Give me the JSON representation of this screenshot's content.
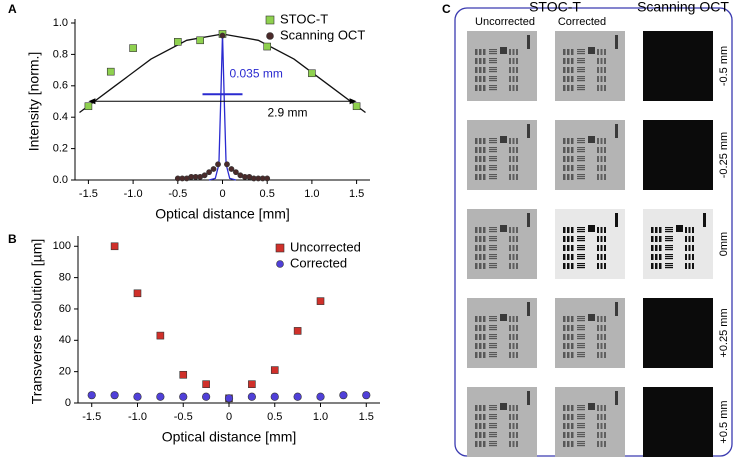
{
  "panel_labels": [
    "A",
    "B",
    "C"
  ],
  "chart_data": [
    {
      "type": "scatter",
      "xlabel": "Optical distance [mm]",
      "ylabel": "Intensity [norm.]",
      "xlim": [
        -1.65,
        1.65
      ],
      "ylim": [
        0,
        1.0
      ],
      "xticks": [
        -1.5,
        {
          "value": -1,
          "label": "-1.0"
        },
        -0.5,
        0,
        0.5,
        {
          "value": 1,
          "label": "1.0"
        },
        1.5
      ],
      "yticks": [
        {
          "value": 0,
          "label": "0.0"
        },
        0.2,
        0.4,
        0.6,
        0.8,
        {
          "value": 1,
          "label": "1.0"
        }
      ],
      "legend": "upper right",
      "annotations": [
        "0.035 mm",
        "2.9 mm"
      ],
      "series": [
        {
          "name": "STOC-T",
          "color": "#8fd14f",
          "marker": "square",
          "x": [
            -1.5,
            -1.25,
            -1.0,
            -0.5,
            -0.25,
            0,
            0.5,
            1.0,
            1.5
          ],
          "values": [
            0.47,
            0.69,
            0.84,
            0.88,
            0.89,
            0.93,
            0.85,
            0.68,
            0.47
          ]
        },
        {
          "name": "Scanning OCT",
          "color": "#4a2a2a",
          "marker": "circle",
          "x": [
            -0.5,
            -0.45,
            -0.4,
            -0.35,
            -0.3,
            -0.25,
            -0.2,
            -0.15,
            -0.1,
            -0.05,
            0,
            0.05,
            0.1,
            0.15,
            0.2,
            0.25,
            0.3,
            0.35,
            0.4,
            0.45,
            0.5
          ],
          "values": [
            0.01,
            0.01,
            0.01,
            0.02,
            0.02,
            0.02,
            0.03,
            0.05,
            0.07,
            0.1,
            0.92,
            0.1,
            0.07,
            0.05,
            0.03,
            0.02,
            0.02,
            0.01,
            0.01,
            0.01,
            0.01
          ]
        },
        {
          "color": "#111111",
          "marker": "line",
          "x": [
            -1.6,
            -1.2,
            -0.8,
            -0.4,
            0,
            0.4,
            0.8,
            1.2,
            1.6
          ],
          "values": [
            0.43,
            0.6,
            0.77,
            0.89,
            0.93,
            0.89,
            0.77,
            0.6,
            0.43
          ]
        },
        {
          "color": "#2a2ad0",
          "marker": "line",
          "x": [
            -0.15,
            -0.08,
            -0.04,
            -0.02,
            0,
            0.02,
            0.04,
            0.08,
            0.15
          ],
          "values": [
            0,
            0.01,
            0.1,
            0.5,
            0.93,
            0.5,
            0.1,
            0.01,
            0
          ]
        }
      ]
    },
    {
      "type": "scatter",
      "xlabel": "Optical distance [mm]",
      "ylabel": "Transverse resolution [µm]",
      "xlim": [
        -1.65,
        1.65
      ],
      "ylim": [
        0,
        104
      ],
      "xticks": [
        -1.5,
        {
          "value": -1,
          "label": "-1.0"
        },
        -0.5,
        0,
        0.5,
        {
          "value": 1,
          "label": "1.0"
        },
        1.5
      ],
      "yticks": [
        0,
        20,
        40,
        60,
        80,
        100
      ],
      "legend": "upper right",
      "series": [
        {
          "name": "Uncorrected",
          "color": "#d0302a",
          "marker": "square",
          "x": [
            -1.25,
            -1.0,
            -0.75,
            -0.5,
            -0.25,
            0,
            0.25,
            0.5,
            0.75,
            1.0
          ],
          "values": [
            100,
            70,
            43,
            18,
            12,
            3,
            12,
            21,
            46,
            65
          ]
        },
        {
          "name": "Corrected",
          "color": "#5040d8",
          "marker": "circle",
          "x": [
            -1.5,
            -1.25,
            -1.0,
            -0.75,
            -0.5,
            -0.25,
            0,
            0.25,
            0.5,
            0.75,
            1.0,
            1.25,
            1.5
          ],
          "values": [
            5,
            5,
            4,
            4,
            4,
            4,
            3,
            4,
            4,
            4,
            4,
            5,
            5
          ]
        }
      ]
    }
  ],
  "panel_c": {
    "groups": [
      "STOC-T",
      "Scanning OCT"
    ],
    "columns": [
      "Uncorrected",
      "Corrected"
    ],
    "rows": [
      "-0.5 mm",
      "-0.25 mm",
      "0mm",
      "+0.25 mm",
      "+0.5 mm"
    ]
  }
}
